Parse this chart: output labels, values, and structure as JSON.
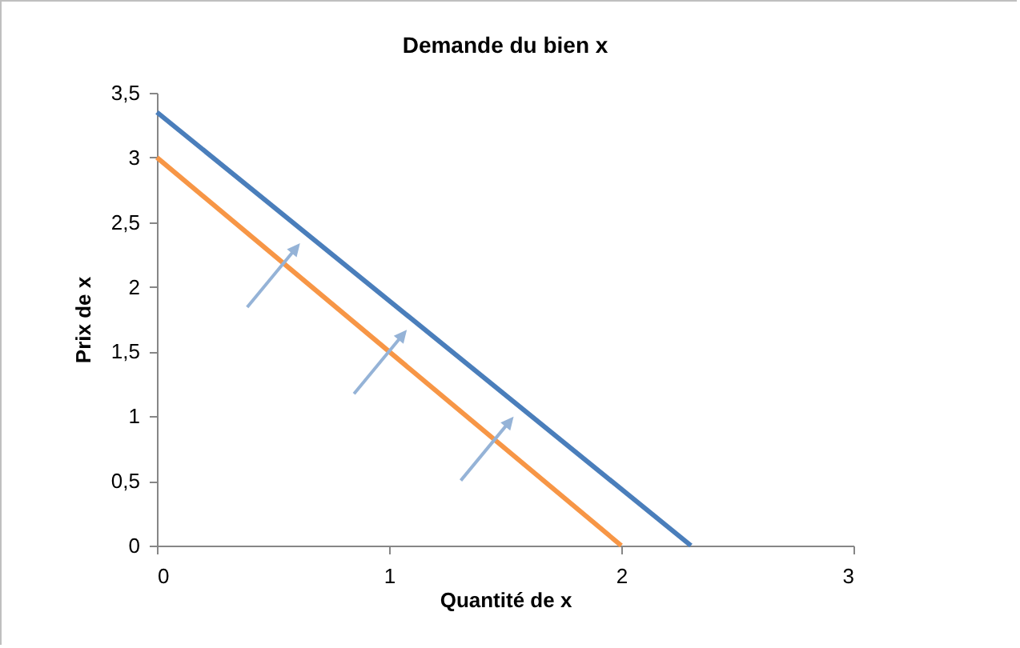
{
  "chart_data": {
    "type": "line",
    "title": "Demande du bien x",
    "xlabel": "Quantité de x",
    "ylabel": "Prix de x",
    "series": [
      {
        "color": "#f79646",
        "x": [
          0,
          2
        ],
        "values": [
          3,
          0
        ]
      },
      {
        "color": "#4a7ebb",
        "x": [
          0,
          2.3
        ],
        "values": [
          3.35,
          0
        ]
      }
    ],
    "xlim": [
      0,
      3
    ],
    "xticks": [
      0,
      1,
      2,
      3
    ],
    "ylim": [
      0,
      3.5
    ],
    "yticks": [
      0,
      {
        "value": 0.5,
        "label": "0,5"
      },
      1,
      {
        "value": 1.5,
        "label": "1,5"
      },
      2,
      {
        "value": 2.5,
        "label": "2,5"
      },
      3,
      {
        "value": 3.5,
        "label": "3,5"
      }
    ],
    "grid": false,
    "legend": false,
    "marker": "none"
  }
}
